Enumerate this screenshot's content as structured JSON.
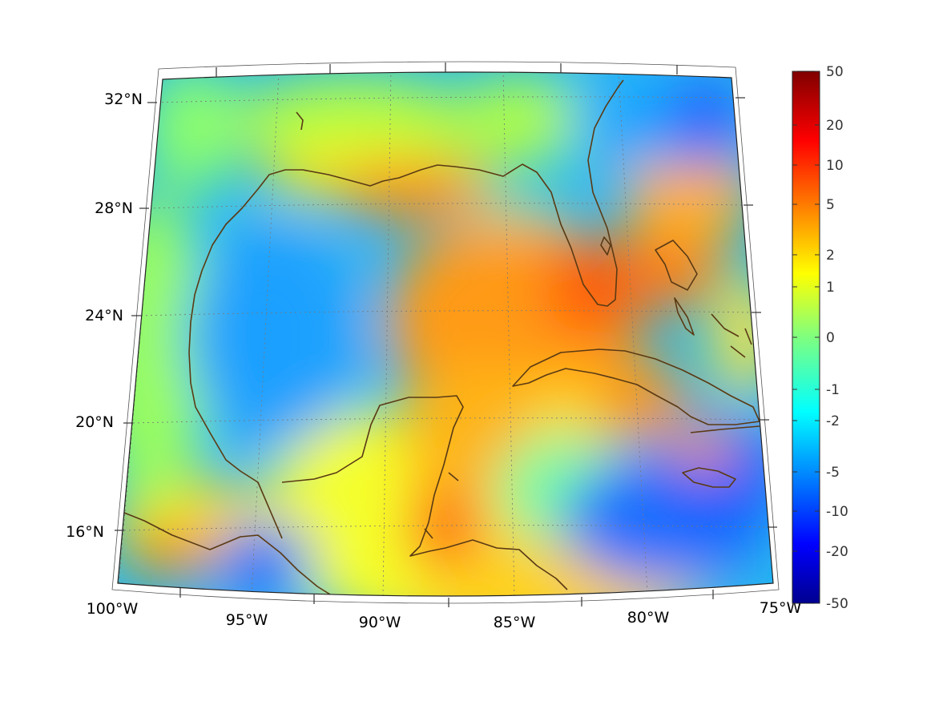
{
  "map": {
    "region": "Gulf of Mexico and western Caribbean",
    "longitude_labels": [
      "100°W",
      "95°W",
      "90°W",
      "85°W",
      "80°W",
      "75°W"
    ],
    "latitude_labels": [
      "32°N",
      "28°N",
      "24°N",
      "20°N",
      "16°N"
    ],
    "coastline_color": "#5a3a14",
    "graticule": "dotted"
  },
  "colorbar": {
    "colormap": "jet",
    "scale": "symmetric log-like",
    "tick_labels": [
      "50",
      "20",
      "10",
      "5",
      "2",
      "1",
      "0",
      "-1",
      "-2",
      "-5",
      "-10",
      "-20",
      "-50"
    ],
    "top_color": "#800000",
    "bottom_color": "#00008f"
  },
  "field_hotspots": [
    {
      "place": "northern Gulf coast (Louisiana–Mississippi)",
      "level": 6
    },
    {
      "place": "southeastern Gulf / Florida Straits / Cuba",
      "level": 6
    },
    {
      "place": "Bahamas",
      "level": 6
    },
    {
      "place": "Gulf of Honduras / Belize",
      "level": 8
    },
    {
      "place": "Bay of Campeche / western Gulf",
      "level": -3
    },
    {
      "place": "Caribbean south of Cuba and around Jamaica",
      "level": -8
    },
    {
      "place": "Atlantic east of Florida",
      "level": -5
    }
  ]
}
